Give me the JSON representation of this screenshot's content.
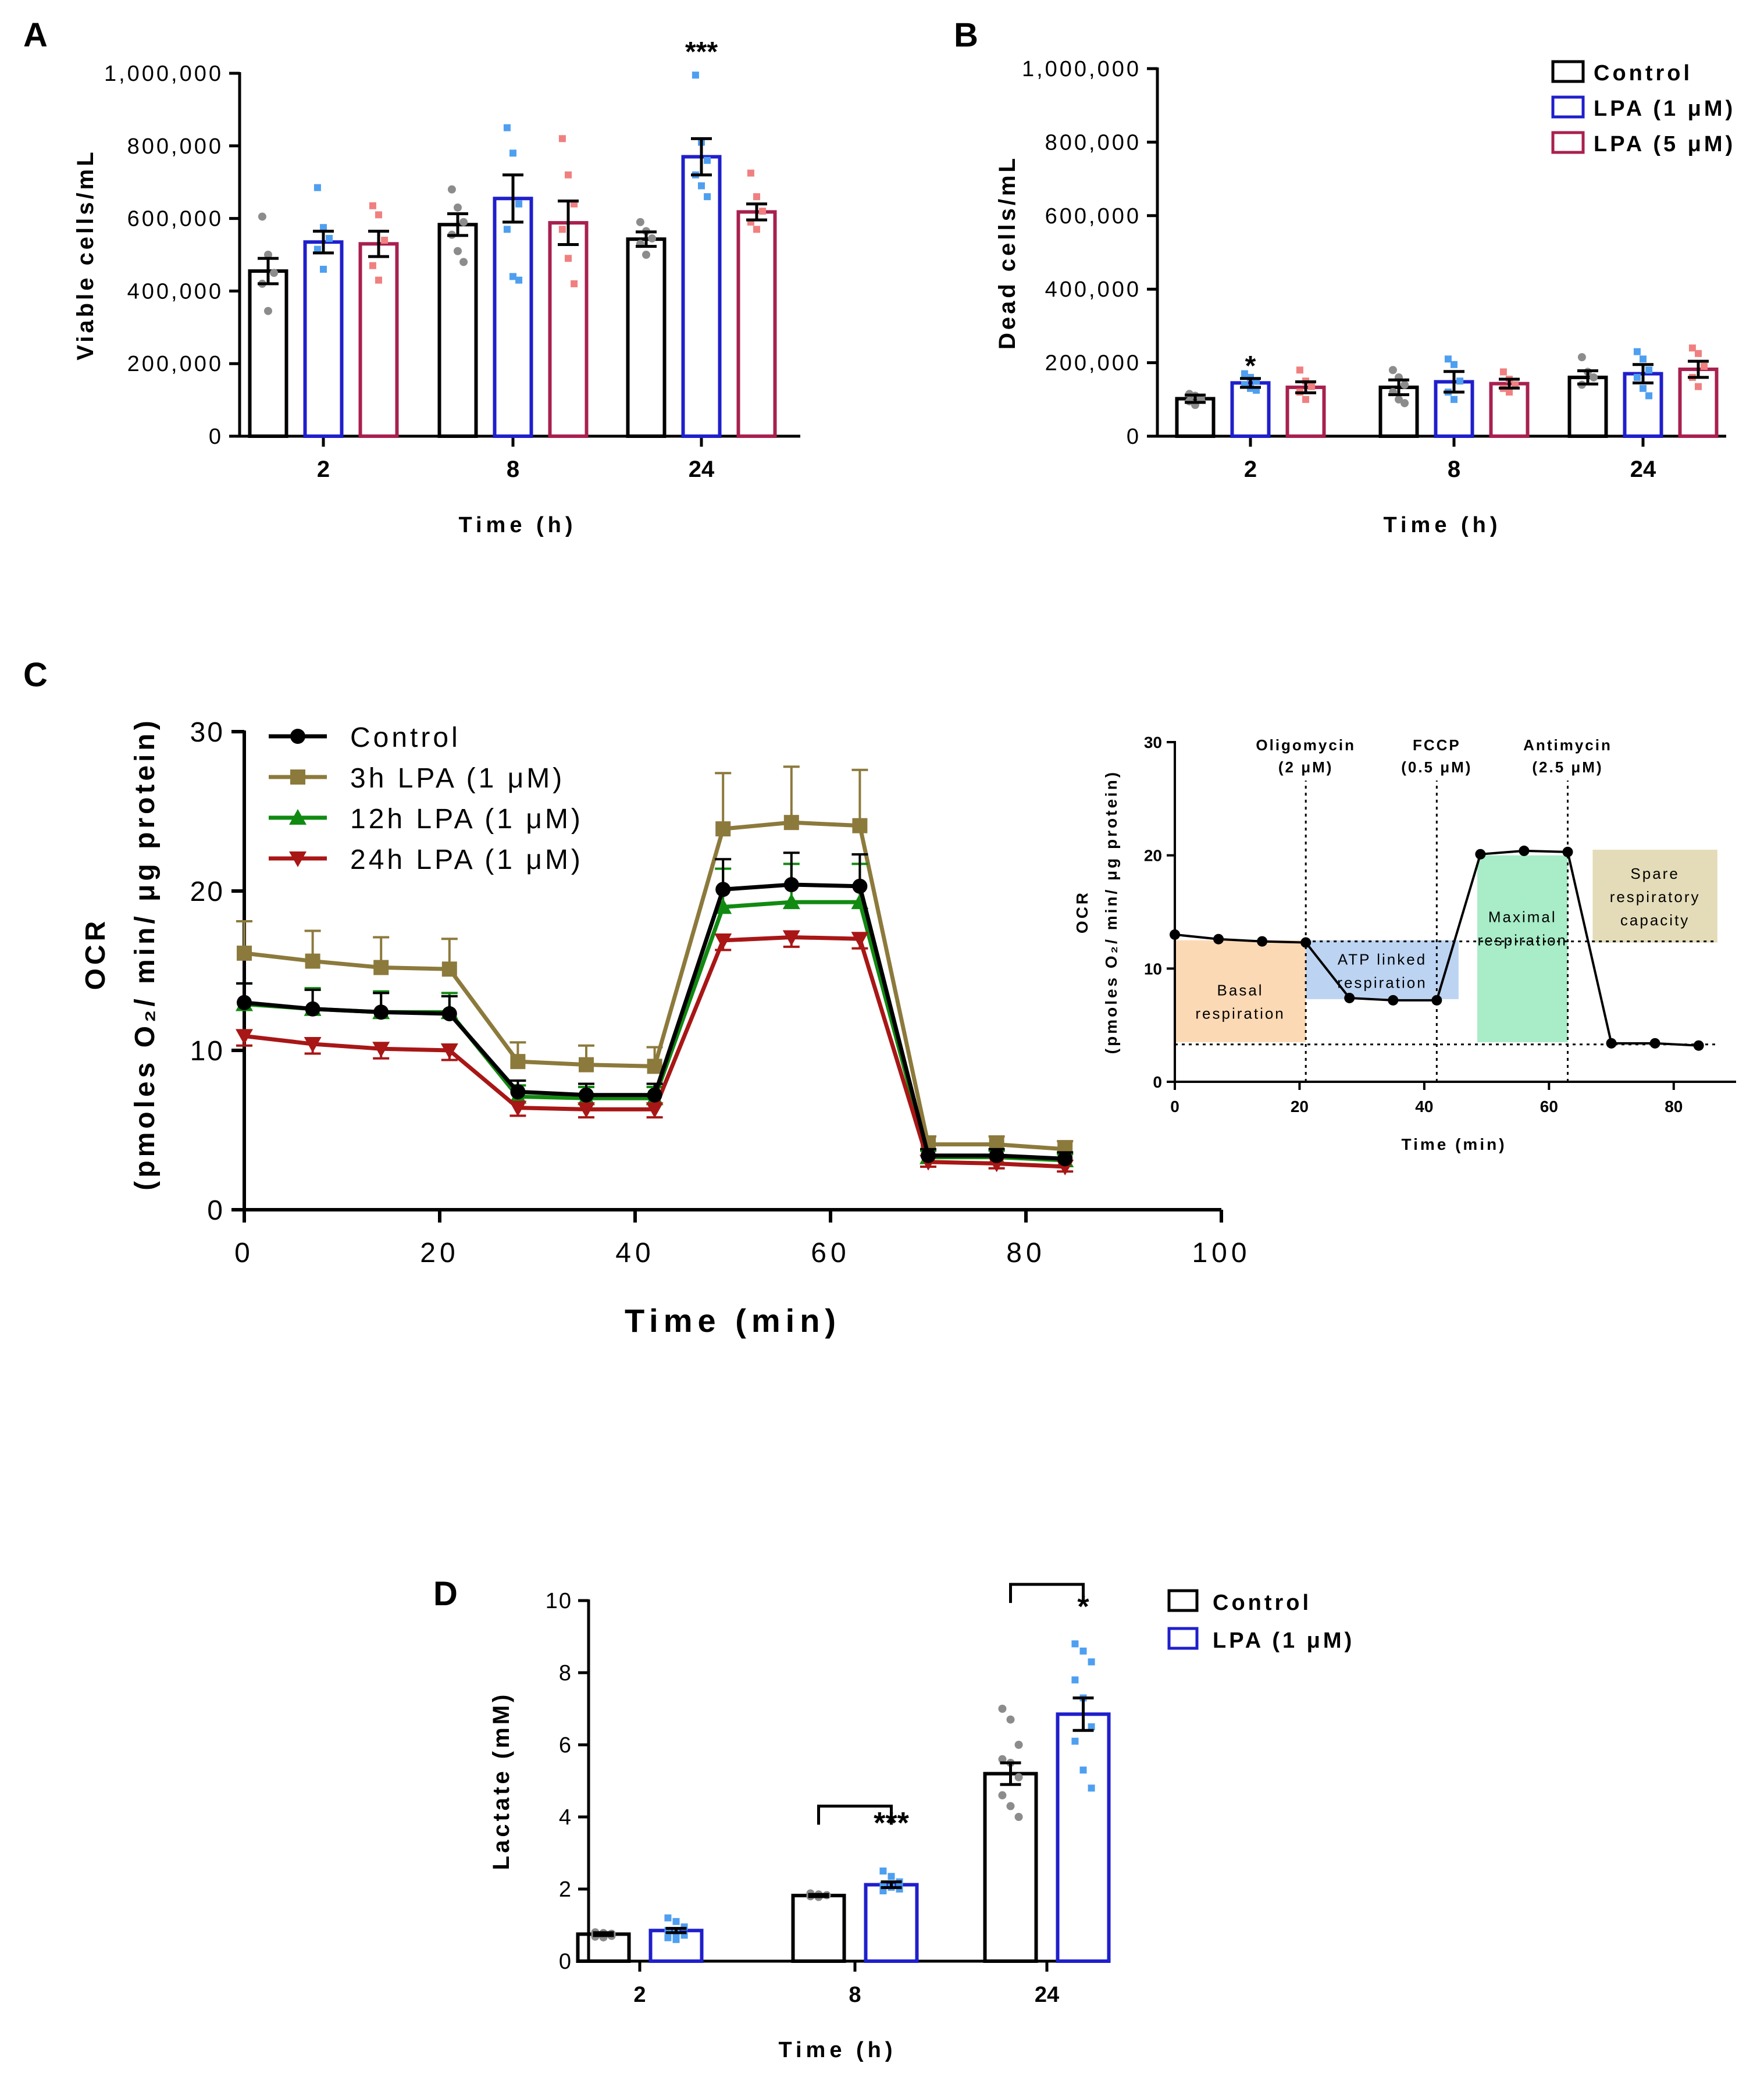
{
  "panels": {
    "A": {
      "letter": "A"
    },
    "B": {
      "letter": "B"
    },
    "C": {
      "letter": "C"
    },
    "D": {
      "letter": "D"
    }
  },
  "legendB": [
    "Control",
    "LPA (1 μM)",
    "LPA (5 μM)"
  ],
  "legendC": [
    "Control",
    "3h LPA (1 μM)",
    "12h LPA (1 μM)",
    "24h LPA (1 μM)"
  ],
  "legendD": [
    "Control",
    "LPA (1 μM)"
  ],
  "colors": {
    "control": "#000000",
    "lpa1": "#1f1fcc",
    "lpa5": "#a8204f",
    "ctrl_dots": "#8c8c8c",
    "lpa1_dots": "#4f9ff0",
    "lpa5_dots": "#f08080",
    "c_control": "#000000",
    "c_3h": "#8c7a3c",
    "c_12h": "#118a11",
    "c_24h": "#a81616",
    "basal_box": "#fcd9b5",
    "atp_box": "#bcd4f2",
    "max_box": "#a8ecc8",
    "spare_box": "#e4dcb8"
  },
  "chart_data": [
    {
      "id": "A",
      "type": "bar",
      "title": "",
      "xlabel": "Time (h)",
      "ylabel": "Viable cells/mL",
      "categories": [
        "2",
        "8",
        "24"
      ],
      "ylim": [
        0,
        1000000
      ],
      "yticks": [
        "0",
        "200,000",
        "400,000",
        "600,000",
        "800,000",
        "1,000,000"
      ],
      "series": [
        {
          "name": "Control",
          "values": [
            455000,
            583000,
            543000
          ],
          "sem": [
            35000,
            30000,
            20000
          ],
          "points": [
            [
              605000,
              500000,
              450000,
              420000,
              345000
            ],
            [
              680000,
              630000,
              590000,
              555000,
              510000,
              480000
            ],
            [
              590000,
              565000,
              545000,
              530000,
              500000
            ]
          ]
        },
        {
          "name": "LPA (1 μM)",
          "values": [
            535000,
            655000,
            770000
          ],
          "sem": [
            30000,
            65000,
            50000
          ],
          "points": [
            [
              685000,
              575000,
              545000,
              515000,
              460000
            ],
            [
              850000,
              780000,
              640000,
              570000,
              440000,
              430000
            ],
            [
              995000,
              810000,
              760000,
              720000,
              690000,
              660000
            ]
          ]
        },
        {
          "name": "LPA (5 μM)",
          "values": [
            530000,
            588000,
            618000
          ],
          "sem": [
            35000,
            60000,
            22000
          ],
          "points": [
            [
              635000,
              610000,
              540000,
              470000,
              430000
            ],
            [
              820000,
              720000,
              640000,
              570000,
              490000,
              420000
            ],
            [
              725000,
              660000,
              620000,
              590000,
              570000
            ]
          ]
        }
      ],
      "annotations": [
        {
          "category": "24",
          "text": "***"
        }
      ]
    },
    {
      "id": "B",
      "type": "bar",
      "title": "",
      "xlabel": "Time (h)",
      "ylabel": "Dead cells/mL",
      "categories": [
        "2",
        "8",
        "24"
      ],
      "ylim": [
        0,
        1000000
      ],
      "yticks": [
        "0",
        "200,000",
        "400,000",
        "600,000",
        "800,000",
        "1,000,000"
      ],
      "series": [
        {
          "name": "Control",
          "values": [
            102000,
            133000,
            160000
          ],
          "sem": [
            10000,
            20000,
            18000
          ],
          "points": [
            [
              115000,
              110000,
              100000,
              95000,
              85000
            ],
            [
              180000,
              160000,
              140000,
              120000,
              100000,
              90000
            ],
            [
              215000,
              175000,
              160000,
              140000
            ]
          ]
        },
        {
          "name": "LPA (1 μM)",
          "values": [
            145000,
            148000,
            170000
          ],
          "sem": [
            12000,
            28000,
            25000
          ],
          "points": [
            [
              170000,
              160000,
              150000,
              140000,
              130000,
              125000
            ],
            [
              210000,
              195000,
              150000,
              120000,
              100000
            ],
            [
              230000,
              210000,
              180000,
              160000,
              130000,
              110000
            ]
          ]
        },
        {
          "name": "LPA (5 μM)",
          "values": [
            133000,
            143000,
            182000
          ],
          "sem": [
            15000,
            12000,
            22000
          ],
          "points": [
            [
              180000,
              150000,
              135000,
              120000,
              100000
            ],
            [
              175000,
              155000,
              140000,
              130000,
              120000
            ],
            [
              240000,
              225000,
              190000,
              160000,
              135000
            ]
          ]
        }
      ],
      "annotations": [
        {
          "category": "2",
          "text": "*"
        }
      ]
    },
    {
      "id": "C",
      "type": "line",
      "title": "",
      "xlabel": "Time (min)",
      "ylabel": "OCR",
      "ylabel2": "(pmoles O₂/ min/ μg protein)",
      "x": [
        0,
        7,
        14,
        21,
        28,
        35,
        42,
        49,
        56,
        63,
        70,
        77,
        84
      ],
      "xlim": [
        0,
        100
      ],
      "ylim": [
        0,
        30
      ],
      "xticks": [
        "0",
        "20",
        "40",
        "60",
        "80",
        "100"
      ],
      "yticks": [
        "0",
        "10",
        "20",
        "30"
      ],
      "series": [
        {
          "name": "Control",
          "values": [
            13.0,
            12.6,
            12.4,
            12.3,
            7.4,
            7.2,
            7.2,
            20.1,
            20.4,
            20.3,
            3.4,
            3.4,
            3.2
          ],
          "err": [
            1.2,
            1.2,
            1.2,
            1.1,
            0.7,
            0.7,
            0.7,
            1.9,
            2.0,
            2.0,
            0.4,
            0.4,
            0.4
          ]
        },
        {
          "name": "3h LPA (1 μM)",
          "values": [
            16.1,
            15.6,
            15.2,
            15.1,
            9.3,
            9.1,
            9.0,
            23.9,
            24.3,
            24.1,
            4.1,
            4.1,
            3.8
          ],
          "err": [
            2.0,
            1.9,
            1.9,
            1.9,
            1.2,
            1.2,
            1.2,
            3.5,
            3.5,
            3.5,
            0.5,
            0.5,
            0.5
          ]
        },
        {
          "name": "12h LPA (1 μM)",
          "values": [
            12.9,
            12.6,
            12.4,
            12.4,
            7.1,
            7.0,
            7.0,
            19.0,
            19.3,
            19.3,
            3.3,
            3.3,
            3.1
          ],
          "err": [
            1.3,
            1.3,
            1.3,
            1.2,
            0.7,
            0.7,
            0.7,
            2.4,
            2.4,
            2.4,
            0.4,
            0.4,
            0.4
          ]
        },
        {
          "name": "24h LPA (1 μM)",
          "values": [
            10.9,
            10.4,
            10.1,
            10.0,
            6.4,
            6.3,
            6.3,
            16.9,
            17.1,
            17.0,
            3.0,
            2.9,
            2.7
          ],
          "err": [
            0.6,
            0.6,
            0.6,
            0.6,
            0.5,
            0.5,
            0.5,
            0.6,
            0.6,
            0.6,
            0.3,
            0.3,
            0.3
          ]
        }
      ]
    },
    {
      "id": "C-inset",
      "type": "line",
      "title": "",
      "xlabel": "Time (min)",
      "ylabel": "OCR",
      "ylabel2": "(pmoles O₂/ min/ μg protein)",
      "x": [
        0,
        7,
        14,
        21,
        28,
        35,
        42,
        49,
        56,
        63,
        70,
        77,
        84
      ],
      "values": [
        13.0,
        12.6,
        12.4,
        12.3,
        7.4,
        7.2,
        7.2,
        20.1,
        20.4,
        20.3,
        3.4,
        3.4,
        3.2
      ],
      "xlim": [
        0,
        90
      ],
      "ylim": [
        0,
        30
      ],
      "xticks": [
        "0",
        "20",
        "40",
        "60",
        "80"
      ],
      "yticks": [
        "0",
        "10",
        "20",
        "30"
      ],
      "injections": [
        {
          "x": 21,
          "label": "Oligomycin",
          "dose": "(2 μM)"
        },
        {
          "x": 42,
          "label": "FCCP",
          "dose": "(0.5 μM)"
        },
        {
          "x": 63,
          "label": "Antimycin",
          "dose": "(2.5 μM)"
        }
      ],
      "regions": [
        {
          "label1": "Basal",
          "label2": "respiration"
        },
        {
          "label1": "ATP linked",
          "label2": "respiration"
        },
        {
          "label1": "Maximal",
          "label2": "respiration"
        },
        {
          "label1": "Spare",
          "label2": "respiratory",
          "label3": "capacity"
        }
      ]
    },
    {
      "id": "D",
      "type": "bar",
      "title": "",
      "xlabel": "Time (h)",
      "ylabel": "Lactate (mM)",
      "categories": [
        "2",
        "8",
        "24"
      ],
      "ylim": [
        0,
        10
      ],
      "yticks": [
        "0",
        "2",
        "4",
        "6",
        "8",
        "10"
      ],
      "series": [
        {
          "name": "Control",
          "values": [
            0.75,
            1.82,
            5.2
          ],
          "sem": [
            0.04,
            0.03,
            0.3
          ],
          "points": [
            [
              0.8,
              0.78,
              0.76,
              0.74,
              0.72,
              0.7,
              0.68,
              0.66
            ],
            [
              1.88,
              1.85,
              1.83,
              1.8,
              1.78
            ],
            [
              7.0,
              6.7,
              6.0,
              5.6,
              5.5,
              5.1,
              4.6,
              4.3,
              4.0
            ]
          ]
        },
        {
          "name": "LPA (1 μM)",
          "values": [
            0.85,
            2.12,
            6.85
          ],
          "sem": [
            0.06,
            0.08,
            0.45
          ],
          "points": [
            [
              1.2,
              1.1,
              0.95,
              0.85,
              0.78,
              0.72,
              0.65,
              0.6
            ],
            [
              2.5,
              2.35,
              2.2,
              2.1,
              2.05,
              2.0,
              1.95
            ],
            [
              8.8,
              8.6,
              8.3,
              7.8,
              7.3,
              6.5,
              6.1,
              5.3,
              4.8
            ]
          ]
        }
      ],
      "brackets": [
        {
          "category": "8",
          "text": "***"
        },
        {
          "category": "24",
          "text": "*"
        }
      ]
    }
  ]
}
